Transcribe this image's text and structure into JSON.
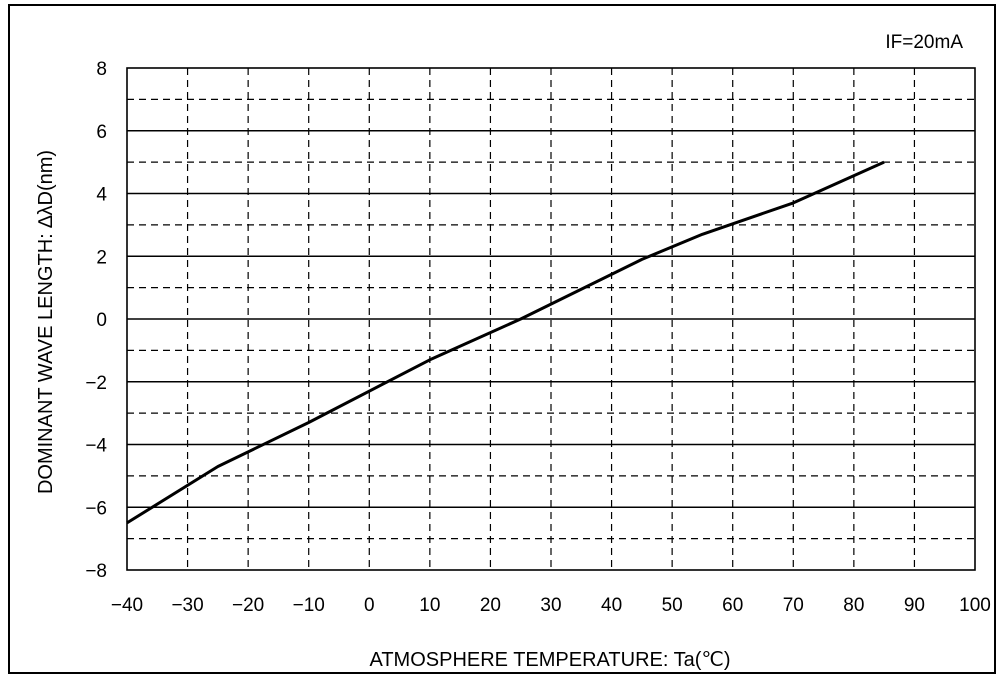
{
  "chart_data": {
    "type": "line",
    "title": "",
    "annotation": "IF=20mA",
    "xlabel": "ATMOSPHERE TEMPERATURE: Ta(℃)",
    "ylabel": "DOMINANT WAVE LENGTH: ∆λD(nm)",
    "xlim": [
      -40,
      100
    ],
    "ylim": [
      -8,
      8
    ],
    "x_ticks": [
      -40,
      -30,
      -20,
      -10,
      0,
      10,
      20,
      30,
      40,
      50,
      60,
      70,
      80,
      90,
      100
    ],
    "y_ticks": [
      -8,
      -6,
      -4,
      -2,
      0,
      2,
      4,
      6,
      8
    ],
    "grid": {
      "major": "solid",
      "minor": "dashed",
      "x_lines": "dashed"
    },
    "series": [
      {
        "x": [
          -40,
          -25,
          -10,
          10,
          25,
          45,
          55,
          70,
          85
        ],
        "y": [
          -6.5,
          -4.7,
          -3.3,
          -1.3,
          0.0,
          1.9,
          2.7,
          3.7,
          5.0
        ]
      }
    ],
    "colors": {
      "line": "#000000",
      "grid": "#000000"
    }
  }
}
